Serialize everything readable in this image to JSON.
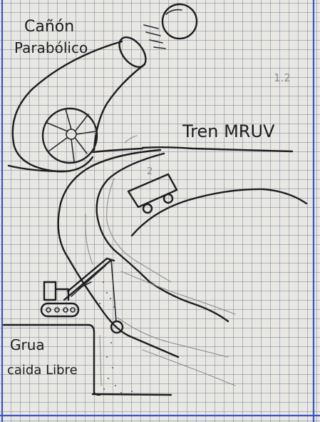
{
  "labels": {
    "cannon_line1": "Cañón",
    "cannon_line2": "Parabólico",
    "train": "Tren MRUV",
    "crane_line1": "Grua",
    "crane_line2": "caida Libre",
    "page_mark": "1.2",
    "pencil_mark": "2"
  },
  "colors": {
    "paper": "#e9e7e2",
    "grid": "#5f7396",
    "margin_line": "#3a54c6",
    "ink": "#1d1d1f",
    "pencil": "#8f8f8f"
  }
}
